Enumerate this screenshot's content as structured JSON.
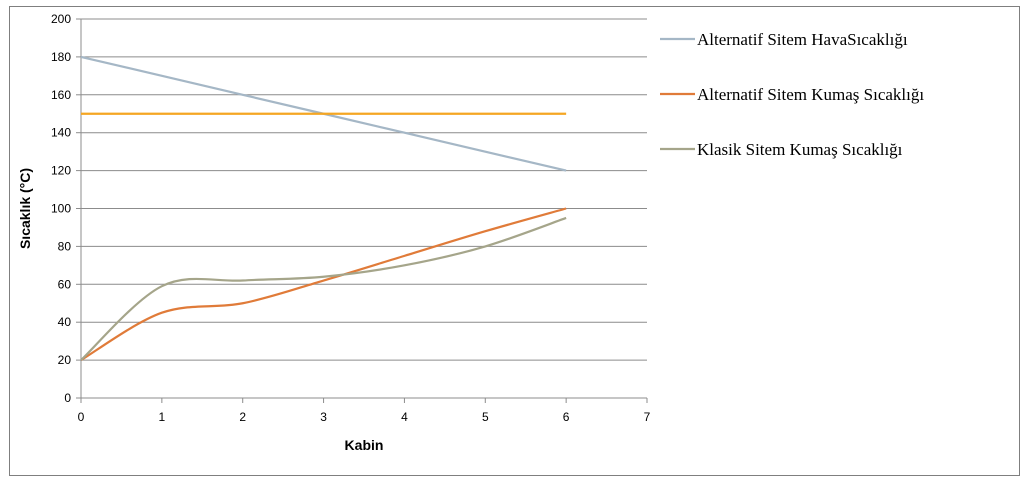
{
  "chart_data": {
    "type": "scatter",
    "title": "",
    "xlabel": "Kabin",
    "ylabel": "Sıcaklık (°C)",
    "xlim": [
      0,
      7
    ],
    "ylim": [
      0,
      200
    ],
    "x_ticks": [
      0,
      1,
      2,
      3,
      4,
      5,
      6,
      7
    ],
    "x_tick_labels": [
      "0",
      "1",
      "2",
      "3",
      "4",
      "5",
      "6",
      "7"
    ],
    "y_ticks": [
      0,
      20,
      40,
      60,
      80,
      100,
      120,
      140,
      160,
      180,
      200
    ],
    "y_tick_labels": [
      "0",
      "20",
      "40",
      "60",
      "80",
      "100",
      "120",
      "140",
      "160",
      "180",
      "200"
    ],
    "grid": "horizontal",
    "legend_position": "right",
    "series": [
      {
        "name": "Alternatif Sitem HavaSıcaklığı",
        "color": "#a5b7c6",
        "smooth": false,
        "x": [
          0,
          1,
          2,
          3,
          4,
          5,
          6
        ],
        "y": [
          180,
          170,
          160,
          150,
          140,
          130,
          120
        ]
      },
      {
        "name": "Alternatif Sitem Kumaş Sıcaklığı",
        "color": "#e07b39",
        "smooth": true,
        "x": [
          0,
          1,
          2,
          3,
          4,
          5,
          6
        ],
        "y": [
          20,
          45,
          50,
          62,
          75,
          88,
          100
        ]
      },
      {
        "name": "Klasik Sitem Kumaş Sıcaklığı",
        "color": "#a5a58a",
        "smooth": true,
        "x": [
          0,
          1,
          2,
          3,
          4,
          5,
          6
        ],
        "y": [
          20,
          59,
          62,
          64,
          70,
          80,
          95
        ]
      },
      {
        "name": "",
        "color": "#f5a623",
        "smooth": false,
        "x": [
          0,
          6
        ],
        "y": [
          150,
          150
        ]
      }
    ]
  }
}
